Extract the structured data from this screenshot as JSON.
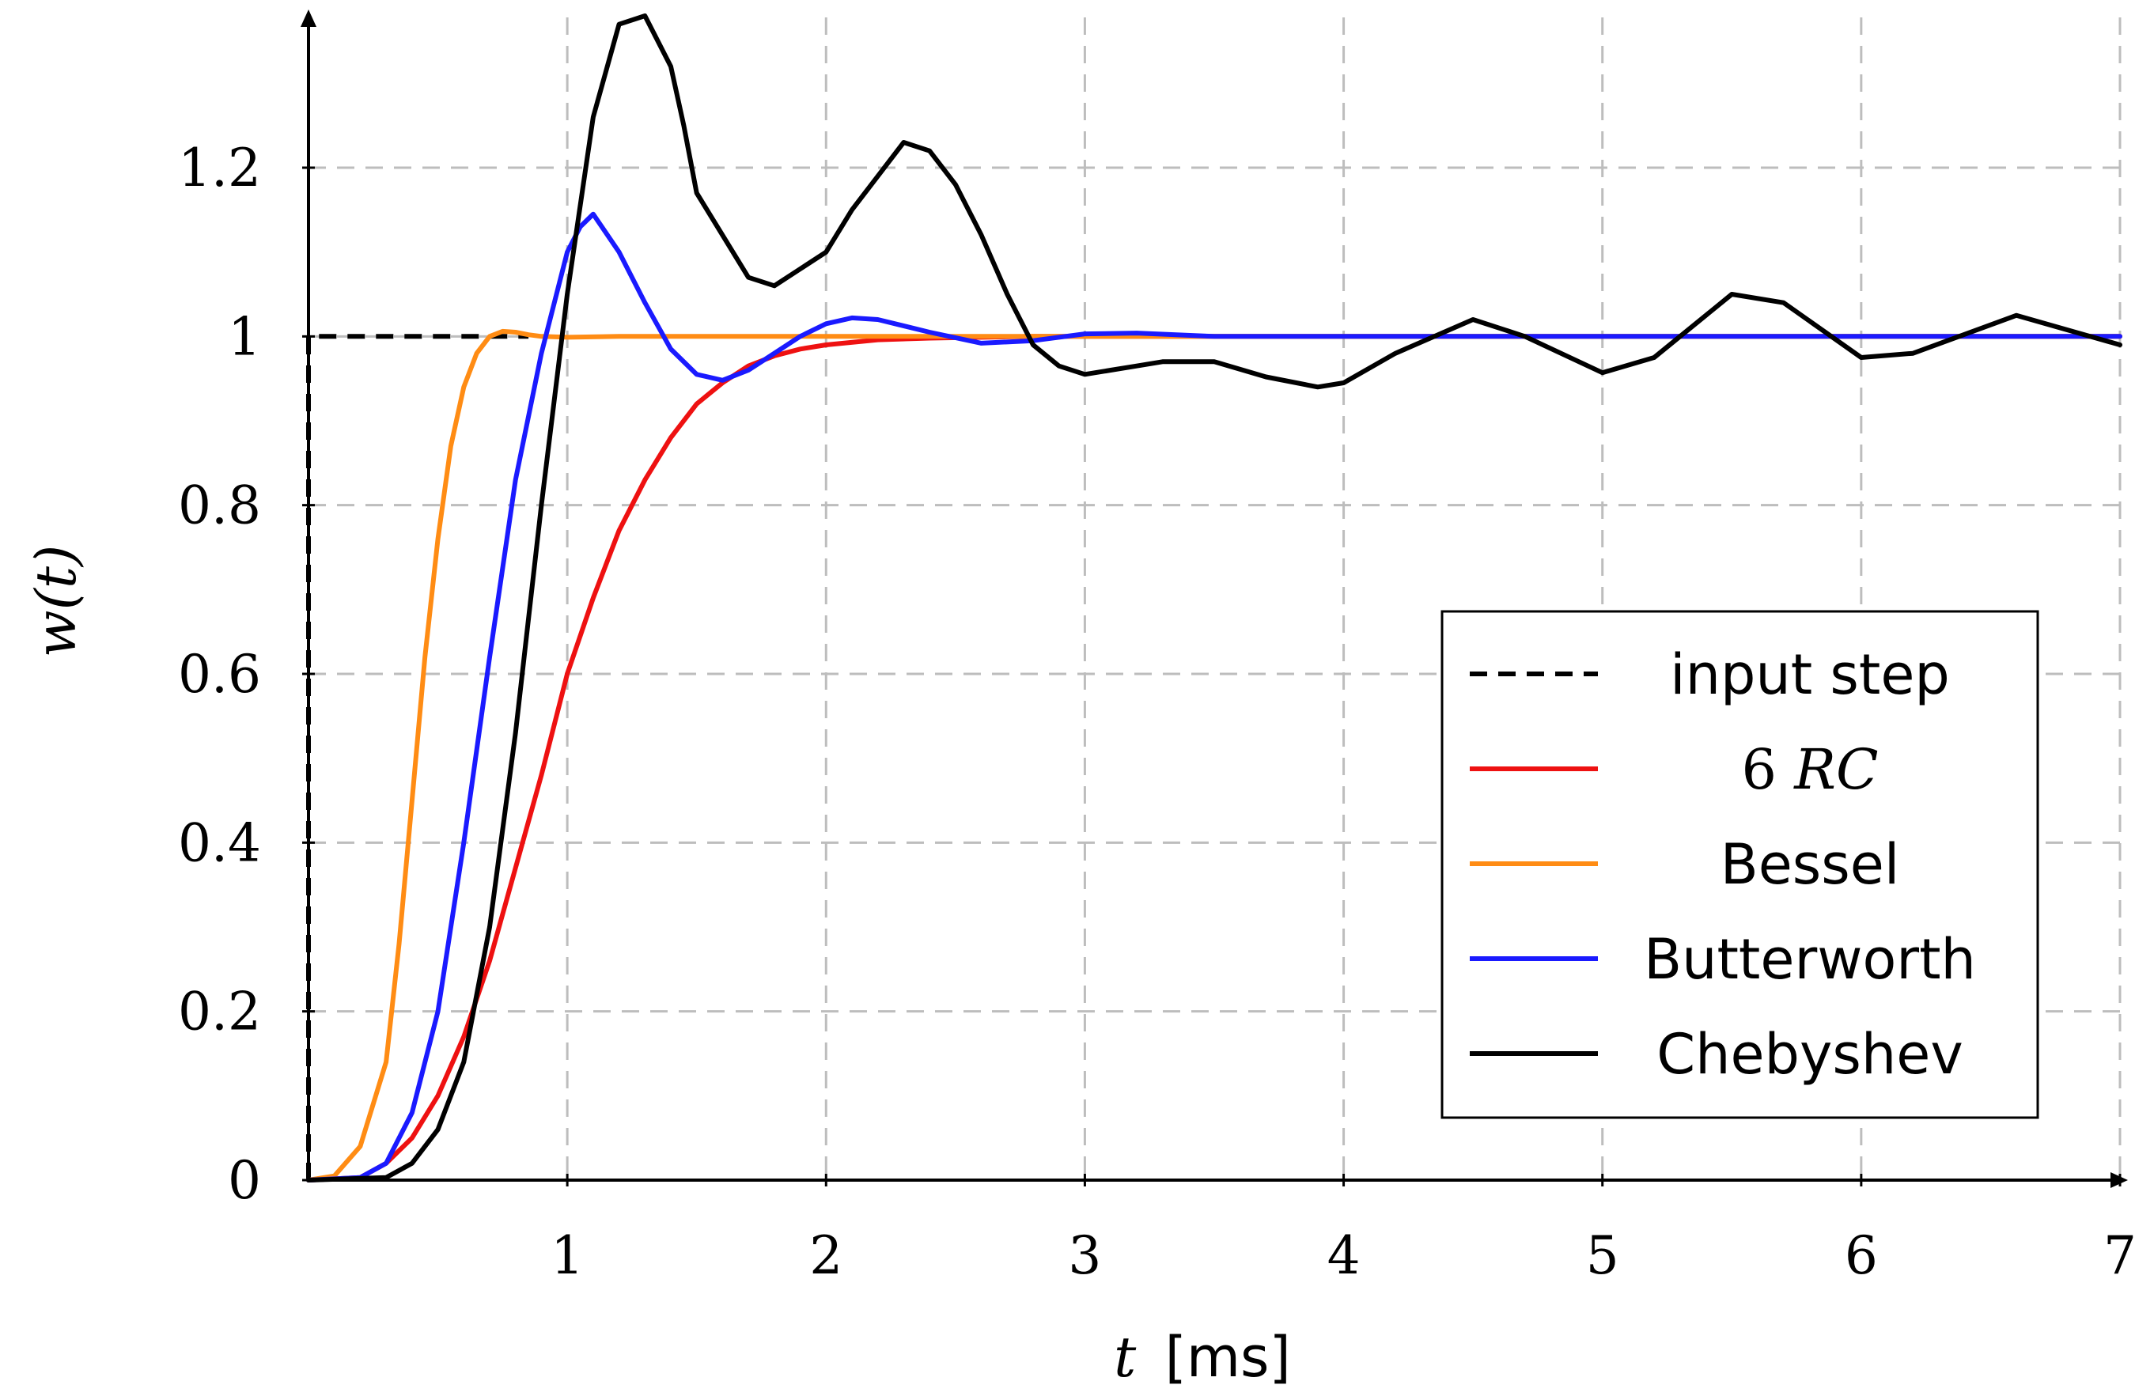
{
  "chart_data": {
    "type": "line",
    "xlabel_var": "t",
    "xlabel_unit": "[ms]",
    "ylabel": "w(t)",
    "xlim": [
      0,
      7
    ],
    "ylim": [
      0,
      1.38
    ],
    "xticks": [
      1,
      2,
      3,
      4,
      5,
      6,
      7
    ],
    "xtick_labels": [
      "1",
      "2",
      "3",
      "4",
      "5",
      "6",
      "7"
    ],
    "yticks": [
      0,
      0.2,
      0.4,
      0.6,
      0.8,
      1,
      1.2
    ],
    "ytick_labels": [
      "0",
      "0.2",
      "0.4",
      "0.6",
      "0.8",
      "1",
      "1.2"
    ],
    "grid": true,
    "legend_position": "right-center",
    "series": [
      {
        "name": "input step",
        "color": "#000000",
        "dashed": true,
        "x": [
          0,
          0,
          0.85
        ],
        "y": [
          0,
          1,
          1
        ]
      },
      {
        "name": "6 RC",
        "color": "#ee1111",
        "x": [
          0.0,
          0.2,
          0.3,
          0.4,
          0.5,
          0.6,
          0.7,
          0.8,
          0.9,
          1.0,
          1.1,
          1.2,
          1.3,
          1.4,
          1.5,
          1.6,
          1.7,
          1.8,
          1.9,
          2.0,
          2.2,
          2.4,
          2.6,
          2.8,
          3.0,
          3.5,
          4.0,
          5.0,
          6.0,
          7.0
        ],
        "y": [
          0.0,
          0.003,
          0.02,
          0.05,
          0.1,
          0.17,
          0.26,
          0.37,
          0.48,
          0.6,
          0.69,
          0.77,
          0.83,
          0.88,
          0.92,
          0.945,
          0.965,
          0.977,
          0.985,
          0.99,
          0.996,
          0.998,
          0.999,
          1.0,
          1.0,
          1.0,
          1.0,
          1.0,
          1.0,
          1.0
        ]
      },
      {
        "name": "Bessel",
        "color": "#ff8c14",
        "x": [
          0.0,
          0.1,
          0.2,
          0.3,
          0.35,
          0.4,
          0.45,
          0.5,
          0.55,
          0.6,
          0.65,
          0.7,
          0.75,
          0.8,
          0.85,
          0.9,
          1.0,
          1.2,
          1.5,
          2.0,
          3.0,
          4.0,
          5.0,
          6.0,
          7.0
        ],
        "y": [
          0.0,
          0.005,
          0.04,
          0.14,
          0.28,
          0.45,
          0.62,
          0.76,
          0.87,
          0.94,
          0.98,
          1.0,
          1.006,
          1.005,
          1.002,
          1.0,
          0.999,
          1.0,
          1.0,
          1.0,
          1.0,
          1.0,
          1.0,
          1.0,
          1.0
        ]
      },
      {
        "name": "Butterworth",
        "color": "#1a1aff",
        "x": [
          0.0,
          0.2,
          0.3,
          0.4,
          0.5,
          0.6,
          0.7,
          0.8,
          0.9,
          1.0,
          1.05,
          1.1,
          1.2,
          1.3,
          1.4,
          1.5,
          1.6,
          1.7,
          1.8,
          1.9,
          2.0,
          2.1,
          2.2,
          2.4,
          2.6,
          2.8,
          3.0,
          3.2,
          3.5,
          4.0,
          5.0,
          6.0,
          7.0
        ],
        "y": [
          0.0,
          0.003,
          0.02,
          0.08,
          0.2,
          0.4,
          0.62,
          0.83,
          0.98,
          1.1,
          1.13,
          1.145,
          1.1,
          1.04,
          0.985,
          0.955,
          0.948,
          0.96,
          0.98,
          1.0,
          1.015,
          1.022,
          1.02,
          1.005,
          0.992,
          0.995,
          1.003,
          1.004,
          1.0,
          1.0,
          1.0,
          1.0,
          1.0
        ]
      },
      {
        "name": "Chebyshev",
        "color": "#000000",
        "x": [
          0.0,
          0.3,
          0.4,
          0.5,
          0.6,
          0.7,
          0.8,
          0.9,
          1.0,
          1.1,
          1.2,
          1.3,
          1.4,
          1.45,
          1.5,
          1.6,
          1.7,
          1.8,
          1.9,
          2.0,
          2.1,
          2.2,
          2.3,
          2.4,
          2.5,
          2.6,
          2.7,
          2.8,
          2.9,
          3.0,
          3.1,
          3.2,
          3.3,
          3.5,
          3.7,
          3.9,
          4.0,
          4.2,
          4.5,
          4.7,
          5.0,
          5.2,
          5.5,
          5.7,
          6.0,
          6.2,
          6.6,
          7.0
        ],
        "y": [
          0.0,
          0.003,
          0.02,
          0.06,
          0.14,
          0.3,
          0.53,
          0.8,
          1.05,
          1.26,
          1.37,
          1.38,
          1.32,
          1.25,
          1.17,
          1.12,
          1.07,
          1.06,
          1.08,
          1.1,
          1.15,
          1.19,
          1.23,
          1.22,
          1.18,
          1.12,
          1.05,
          0.99,
          0.965,
          0.955,
          0.96,
          0.965,
          0.97,
          0.97,
          0.952,
          0.94,
          0.945,
          0.98,
          1.02,
          1.0,
          0.957,
          0.975,
          1.05,
          1.04,
          0.975,
          0.98,
          1.025,
          0.99
        ]
      }
    ]
  }
}
